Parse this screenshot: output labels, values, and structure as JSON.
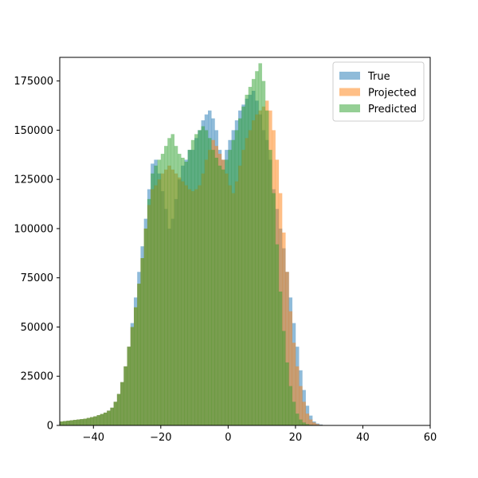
{
  "chart_data": {
    "type": "histogram",
    "title": "",
    "xlabel": "",
    "ylabel": "",
    "xlim": [
      -50,
      60
    ],
    "ylim": [
      0,
      187000
    ],
    "xticks": [
      -40,
      -20,
      0,
      20,
      40,
      60
    ],
    "yticks": [
      0,
      25000,
      50000,
      75000,
      100000,
      125000,
      150000,
      175000
    ],
    "bin_width": 1,
    "bin_start": -50,
    "alpha": 0.5,
    "legend_position": "top-right",
    "grid": false,
    "series": [
      {
        "name": "True",
        "color": "#1f77b4",
        "counts": [
          2000,
          2200,
          2400,
          2600,
          2800,
          3000,
          3200,
          3400,
          3800,
          4200,
          4600,
          5200,
          5800,
          6500,
          7500,
          9000,
          12000,
          16000,
          22000,
          30000,
          40000,
          52000,
          65000,
          78000,
          91000,
          105000,
          120000,
          133000,
          135000,
          128000,
          119000,
          110000,
          100000,
          105000,
          115000,
          125000,
          132000,
          135000,
          140000,
          140000,
          146000,
          150000,
          155000,
          158000,
          160000,
          156000,
          150000,
          140000,
          135000,
          140000,
          145000,
          150000,
          155000,
          160000,
          163000,
          166000,
          168000,
          170000,
          165000,
          158000,
          150000,
          145000,
          135000,
          120000,
          110000,
          100000,
          90000,
          78000,
          65000,
          52000,
          40000,
          28000,
          18000,
          10000,
          5000,
          2000,
          1000,
          500,
          200,
          100,
          0,
          0,
          0,
          0,
          0,
          0,
          0,
          0,
          0,
          0,
          0,
          0,
          0,
          0,
          0,
          0,
          0,
          0,
          0,
          0,
          0,
          0,
          0,
          0,
          0,
          0,
          0,
          0,
          0,
          0
        ]
      },
      {
        "name": "Projected",
        "color": "#ff7f0e",
        "counts": [
          2000,
          2200,
          2400,
          2600,
          2800,
          3000,
          3200,
          3400,
          3800,
          4200,
          4600,
          5200,
          5800,
          6500,
          7500,
          9000,
          12000,
          16000,
          22000,
          30000,
          40000,
          50000,
          60000,
          72000,
          85000,
          100000,
          112000,
          120000,
          122000,
          125000,
          128000,
          130000,
          132000,
          130000,
          128000,
          126000,
          124000,
          122000,
          120000,
          119000,
          120000,
          122000,
          128000,
          135000,
          140000,
          145000,
          142000,
          138000,
          135000,
          128000,
          122000,
          118000,
          124000,
          132000,
          140000,
          146000,
          150000,
          155000,
          158000,
          160000,
          162000,
          165000,
          160000,
          150000,
          135000,
          118000,
          98000,
          78000,
          58000,
          42000,
          30000,
          20000,
          12000,
          6000,
          3000,
          1500,
          700,
          300,
          100,
          0,
          0,
          0,
          0,
          0,
          0,
          0,
          0,
          0,
          0,
          0,
          0,
          0,
          0,
          0,
          0,
          0,
          0,
          0,
          0,
          0,
          0,
          0,
          0,
          0,
          0,
          0,
          0,
          0,
          0,
          0
        ]
      },
      {
        "name": "Predicted",
        "color": "#2ca02c",
        "counts": [
          2000,
          2200,
          2400,
          2600,
          2800,
          3000,
          3200,
          3400,
          3800,
          4200,
          4600,
          5200,
          5800,
          6500,
          7500,
          9000,
          12000,
          16000,
          22000,
          30000,
          40000,
          50000,
          60000,
          72000,
          85000,
          100000,
          115000,
          128000,
          132000,
          135000,
          138000,
          142000,
          146000,
          148000,
          142000,
          138000,
          136000,
          134000,
          140000,
          145000,
          148000,
          150000,
          152000,
          150000,
          146000,
          140000,
          136000,
          132000,
          130000,
          135000,
          140000,
          145000,
          150000,
          156000,
          162000,
          168000,
          172000,
          176000,
          180000,
          184000,
          175000,
          160000,
          140000,
          118000,
          92000,
          68000,
          48000,
          32000,
          20000,
          12000,
          6000,
          3000,
          1500,
          700,
          300,
          100,
          0,
          0,
          0,
          0,
          0,
          0,
          0,
          0,
          0,
          0,
          0,
          0,
          0,
          0,
          0,
          0,
          0,
          0,
          0,
          0,
          0,
          0,
          0,
          0,
          0,
          0,
          0,
          0,
          0,
          0,
          0,
          0,
          0
        ]
      }
    ]
  }
}
